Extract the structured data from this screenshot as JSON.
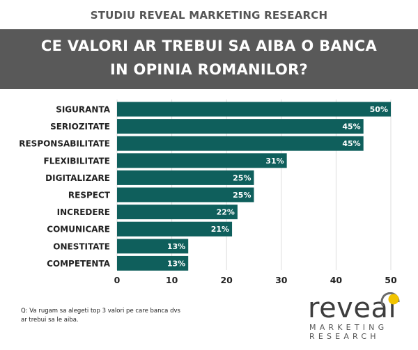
{
  "header": {
    "subtitle": "STUDIU REVEAL MARKETING RESEARCH",
    "title_line1": "CE VALORI AR TREBUI SA AIBA O BANCA",
    "title_line2": "IN OPINIA ROMANILOR?"
  },
  "colors": {
    "bar": "#0f5f5c",
    "banner": "#595959",
    "grid": "#dddddd",
    "logo_yellow": "#f2c400"
  },
  "chart_data": {
    "type": "bar",
    "orientation": "horizontal",
    "categories": [
      "SIGURANTA",
      "SERIOZITATE",
      "RESPONSABILITATE",
      "FLEXIBILITATE",
      "DIGITALIZARE",
      "RESPECT",
      "INCREDERE",
      "COMUNICARE",
      "ONESTITATE",
      "COMPETENTA"
    ],
    "values": [
      50,
      45,
      45,
      31,
      25,
      25,
      22,
      21,
      13,
      13
    ],
    "value_labels": [
      "50%",
      "45%",
      "45%",
      "31%",
      "25%",
      "25%",
      "22%",
      "21%",
      "13%",
      "13%"
    ],
    "xlim": [
      0,
      50
    ],
    "xticks": [
      0,
      10,
      20,
      30,
      40,
      50
    ],
    "xtick_labels": [
      "0",
      "10",
      "20",
      "30",
      "40",
      "50"
    ],
    "grid": true,
    "title": "CE VALORI AR TREBUI SA AIBA O BANCA IN OPINIA ROMANILOR?"
  },
  "footer": {
    "question_line1": "Q: Va rugam sa alegeti top 3 valori pe care banca dvs",
    "question_line2": "ar trebui sa le aiba."
  },
  "logo": {
    "word": "reveal",
    "line1": "MARKETING",
    "line2": "RESEARCH"
  }
}
